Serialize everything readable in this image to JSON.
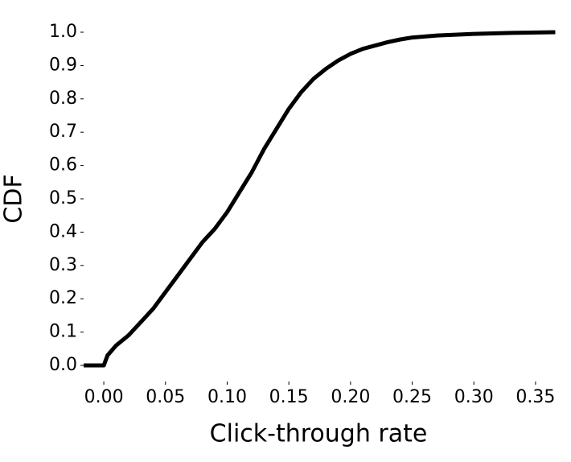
{
  "chart_data": {
    "type": "line",
    "xlabel": "Click-through rate",
    "ylabel": "CDF",
    "color": "#000000",
    "x": [
      -0.0163,
      0,
      0.003,
      0.01,
      0.02,
      0.03,
      0.04,
      0.05,
      0.06,
      0.07,
      0.08,
      0.09,
      0.1,
      0.11,
      0.12,
      0.13,
      0.14,
      0.15,
      0.16,
      0.17,
      0.18,
      0.19,
      0.2,
      0.21,
      0.22,
      0.23,
      0.24,
      0.25,
      0.27,
      0.3,
      0.33,
      0.366
    ],
    "values": [
      0,
      0,
      0.03,
      0.06,
      0.09,
      0.13,
      0.17,
      0.22,
      0.27,
      0.32,
      0.37,
      0.41,
      0.46,
      0.52,
      0.58,
      0.65,
      0.71,
      0.77,
      0.82,
      0.86,
      0.89,
      0.915,
      0.935,
      0.95,
      0.96,
      0.97,
      0.978,
      0.984,
      0.99,
      0.995,
      0.998,
      1.0
    ],
    "xlim": [
      -0.017,
      0.367
    ],
    "ylim": [
      -0.03,
      1.03
    ],
    "xticks": [
      {
        "value": 0,
        "label": "0.00"
      },
      {
        "value": 0.05,
        "label": "0.05"
      },
      {
        "value": 0.1,
        "label": "0.10"
      },
      {
        "value": 0.15,
        "label": "0.15"
      },
      {
        "value": 0.2,
        "label": "0.20"
      },
      {
        "value": 0.25,
        "label": "0.25"
      },
      {
        "value": 0.3,
        "label": "0.30"
      },
      {
        "value": 0.35,
        "label": "0.35"
      }
    ],
    "yticks": [
      {
        "value": 0,
        "label": "0.0"
      },
      0.1,
      0.2,
      0.3,
      0.4,
      0.5,
      0.6,
      0.7,
      0.8,
      0.9,
      {
        "value": 1,
        "label": "1.0"
      }
    ]
  }
}
